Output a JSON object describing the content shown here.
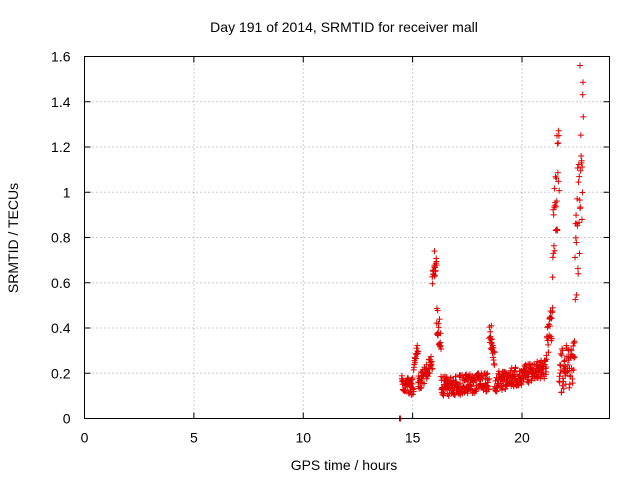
{
  "chart_data": {
    "type": "scatter",
    "title": "Day 191 of 2014, SRMTID for receiver mall",
    "xlabel": "GPS time / hours",
    "ylabel": "SRMTID / TECUs",
    "xlim": [
      0,
      24
    ],
    "ylim": [
      0,
      1.6
    ],
    "xticks": [
      "0",
      "5",
      "10",
      "15",
      "20"
    ],
    "xtick_values": [
      0,
      5,
      10,
      15,
      20
    ],
    "yticks": [
      "0",
      "0.2",
      "0.4",
      "0.6",
      "0.8",
      "1",
      "1.2",
      "1.4",
      "1.6"
    ],
    "ytick_values": [
      0,
      0.2,
      0.4,
      0.6,
      0.8,
      1.0,
      1.2,
      1.4,
      1.6
    ],
    "grid": true,
    "marker": "+",
    "color": "#e00000",
    "series": [
      {
        "name": "SRMTID",
        "segments": [
          {
            "x_start": 14.4,
            "x_end": 14.45,
            "base": [
              0.0,
              0.0
            ],
            "noise": 0.0
          },
          {
            "x_start": 14.5,
            "x_end": 15.05,
            "base": [
              0.15,
              0.14
            ],
            "noise": 0.04
          },
          {
            "x_start": 15.05,
            "x_end": 15.25,
            "base": [
              0.22,
              0.32
            ],
            "noise": 0.03
          },
          {
            "x_start": 15.25,
            "x_end": 15.9,
            "base": [
              0.15,
              0.25
            ],
            "noise": 0.04
          },
          {
            "x_start": 15.9,
            "x_end": 16.1,
            "base": [
              0.62,
              0.7
            ],
            "noise": 0.04
          },
          {
            "x_start": 16.1,
            "x_end": 16.3,
            "base": [
              0.45,
              0.33
            ],
            "noise": 0.07
          },
          {
            "x_start": 16.3,
            "x_end": 18.5,
            "base": [
              0.14,
              0.16
            ],
            "noise": 0.045
          },
          {
            "x_start": 18.5,
            "x_end": 18.75,
            "base": [
              0.36,
              0.25
            ],
            "noise": 0.05
          },
          {
            "x_start": 18.75,
            "x_end": 21.1,
            "base": [
              0.16,
              0.22
            ],
            "noise": 0.045
          },
          {
            "x_start": 21.1,
            "x_end": 21.4,
            "base": [
              0.3,
              0.45
            ],
            "noise": 0.08
          },
          {
            "x_start": 21.4,
            "x_end": 21.7,
            "base": [
              0.75,
              1.1
            ],
            "noise": 0.2
          },
          {
            "x_start": 21.7,
            "x_end": 22.4,
            "base": [
              0.2,
              0.25
            ],
            "noise": 0.1
          },
          {
            "x_start": 22.4,
            "x_end": 22.8,
            "base": [
              0.6,
              1.2
            ],
            "noise": 0.35
          }
        ],
        "peaks": [
          {
            "x": 16.0,
            "y": 0.74
          },
          {
            "x": 18.6,
            "y": 0.41
          },
          {
            "x": 21.6,
            "y": 1.25
          },
          {
            "x": 22.65,
            "y": 1.56
          }
        ]
      }
    ]
  }
}
